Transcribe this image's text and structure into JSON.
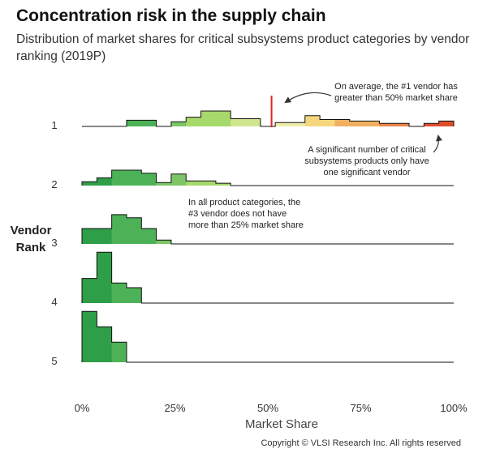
{
  "title": "Concentration risk in the supply chain",
  "subtitle": "Distribution of market shares for critical subsystems product categories by vendor ranking (2019P)",
  "copyright": "Copyright © VLSI Research Inc. All rights reserved",
  "chart_data": {
    "type": "histogram-ridgeline",
    "xlabel": "Market Share",
    "ylabel": "Vendor Rank",
    "xlim": [
      0,
      100
    ],
    "x_ticks": [
      "0%",
      "25%",
      "50%",
      "75%",
      "100%"
    ],
    "x_tick_values": [
      0,
      25,
      50,
      75,
      100
    ],
    "bin_width": 4,
    "series": [
      {
        "name": "1",
        "bins": [
          [
            0,
            0
          ],
          [
            4,
            0
          ],
          [
            8,
            0
          ],
          [
            12,
            0.4
          ],
          [
            16,
            0.4
          ],
          [
            20,
            0
          ],
          [
            24,
            0.3
          ],
          [
            28,
            0.6
          ],
          [
            32,
            1.0
          ],
          [
            36,
            1.0
          ],
          [
            40,
            0.5
          ],
          [
            44,
            0.5
          ],
          [
            48,
            0
          ],
          [
            52,
            0.25
          ],
          [
            56,
            0.25
          ],
          [
            60,
            0.7
          ],
          [
            64,
            0.45
          ],
          [
            68,
            0.45
          ],
          [
            72,
            0.35
          ],
          [
            76,
            0.35
          ],
          [
            80,
            0.2
          ],
          [
            84,
            0.2
          ],
          [
            88,
            0
          ],
          [
            92,
            0.2
          ],
          [
            96,
            0.35
          ]
        ]
      },
      {
        "name": "2",
        "bins": [
          [
            0,
            0.25
          ],
          [
            4,
            0.5
          ],
          [
            8,
            1.0
          ],
          [
            12,
            1.0
          ],
          [
            16,
            0.8
          ],
          [
            20,
            0.2
          ],
          [
            24,
            0.75
          ],
          [
            28,
            0.3
          ],
          [
            32,
            0.3
          ],
          [
            36,
            0.15
          ],
          [
            40,
            0
          ]
        ]
      },
      {
        "name": "3",
        "bins": [
          [
            0,
            1.0
          ],
          [
            4,
            1.0
          ],
          [
            8,
            1.9
          ],
          [
            12,
            1.7
          ],
          [
            16,
            1.0
          ],
          [
            20,
            0.25
          ]
        ]
      },
      {
        "name": "4",
        "bins": [
          [
            0,
            1.6
          ],
          [
            4,
            3.3
          ],
          [
            8,
            1.3
          ],
          [
            12,
            1.0
          ]
        ]
      },
      {
        "name": "5",
        "bins": [
          [
            0,
            3.3
          ],
          [
            4,
            2.3
          ],
          [
            8,
            1.3
          ]
        ]
      }
    ],
    "vline": {
      "x": 51,
      "row": "1",
      "color": "#e32222"
    },
    "annotations": [
      {
        "id": "ann-top",
        "lines": [
          "On average, the #1 vendor has",
          "greater than 50% market share"
        ]
      },
      {
        "id": "ann-right",
        "lines": [
          "A significant number of critical",
          "subsystems products only have",
          "one significant vendor"
        ]
      },
      {
        "id": "ann-mid",
        "lines": [
          "In all product categories, the",
          "#3 vendor does not have",
          "more than 25% market share"
        ]
      }
    ],
    "colors": {
      "scale": [
        "#2f9e48",
        "#4db257",
        "#7dc565",
        "#a6d86b",
        "#cfe68e",
        "#eeeeaa",
        "#f6d77e",
        "#f1b060",
        "#ea8447",
        "#de4d2a"
      ],
      "outline": "#111111"
    }
  }
}
